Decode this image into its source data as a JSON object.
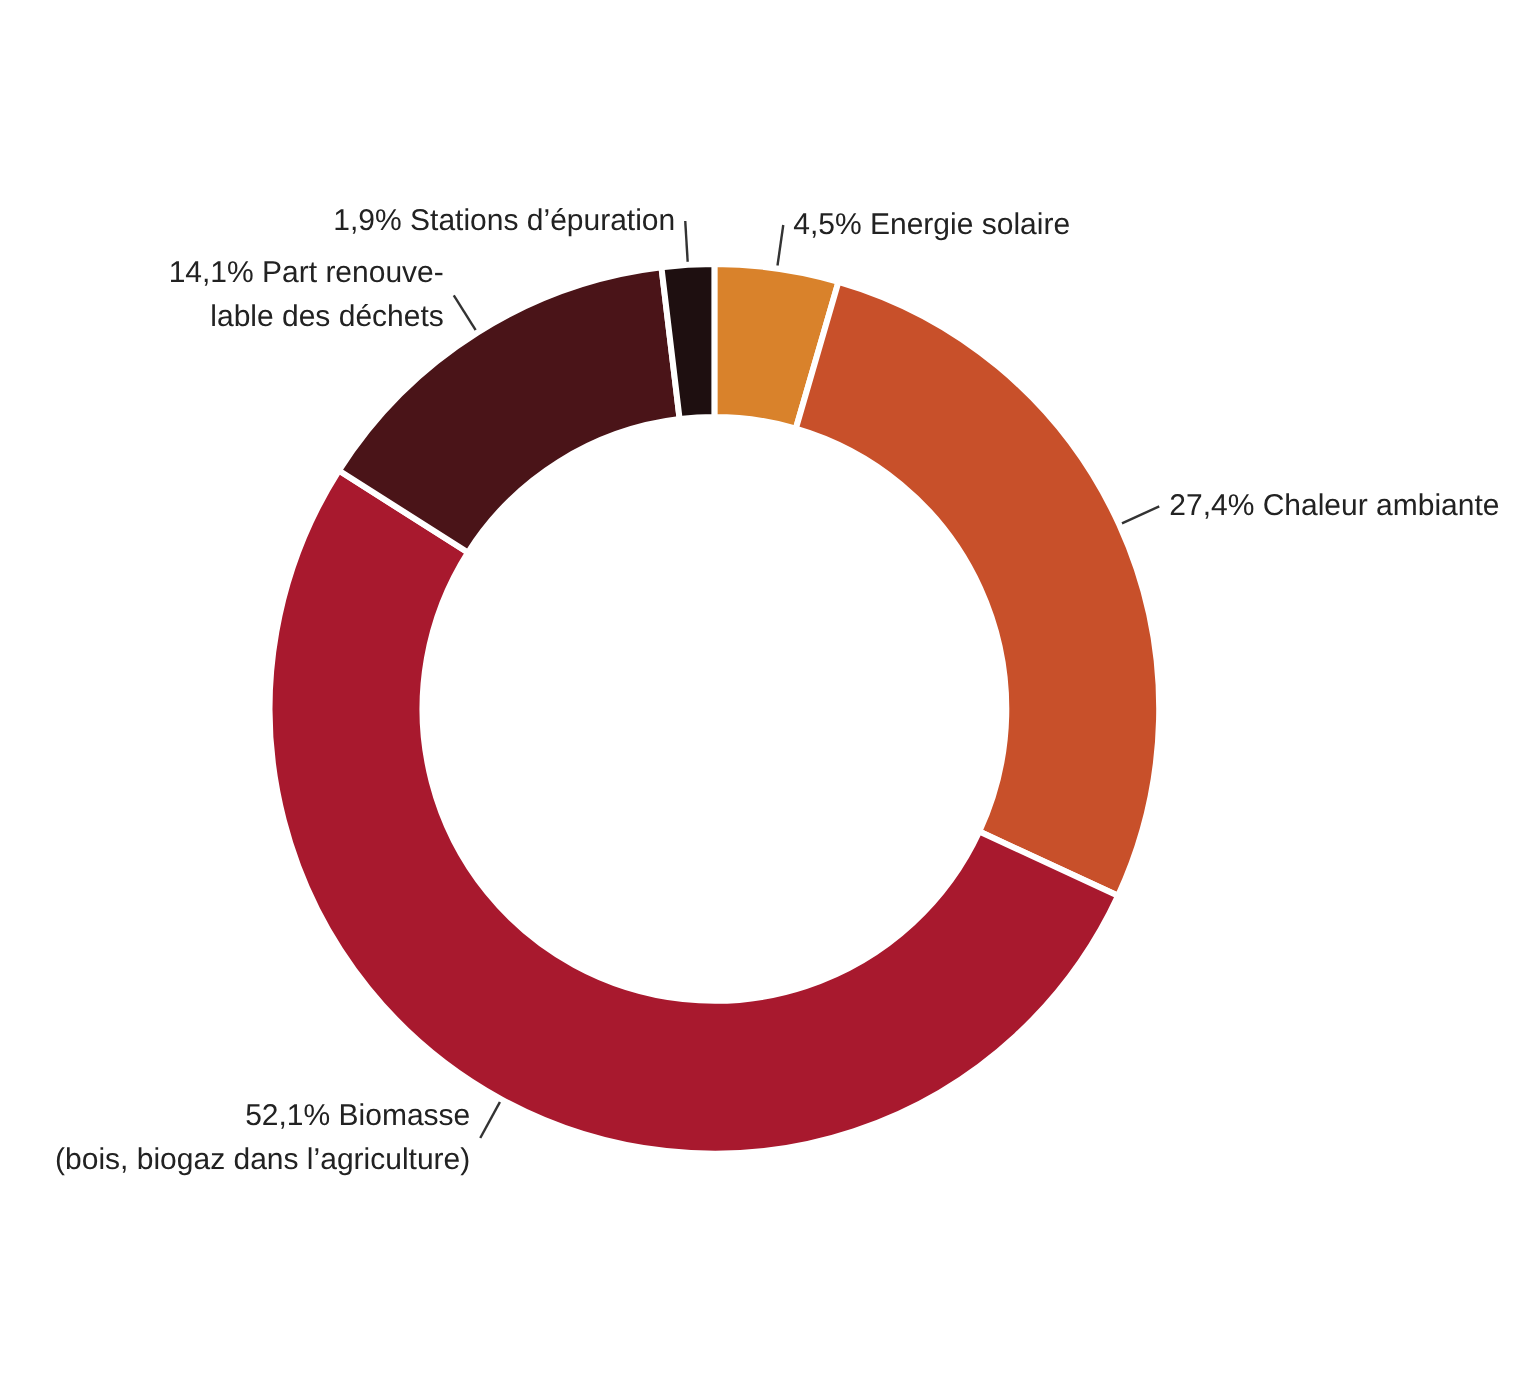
{
  "chart_data": {
    "type": "donut",
    "categories": [
      "Energie solaire",
      "Chaleur ambiante",
      "Biomasse\n(bois, biogaz dans l’agriculture)",
      "Part renouve-\nlable des déchets",
      "Stations d’épuration"
    ],
    "values": [
      4.5,
      27.4,
      52.1,
      14.1,
      1.9
    ],
    "value_labels": [
      "4,5%",
      "27,4%",
      "52,1%",
      "14,1%",
      "1,9%"
    ],
    "colors": [
      "#d9822b",
      "#c8502a",
      "#a8192e",
      "#4a1418",
      "#1e0f10"
    ],
    "legend": false
  }
}
